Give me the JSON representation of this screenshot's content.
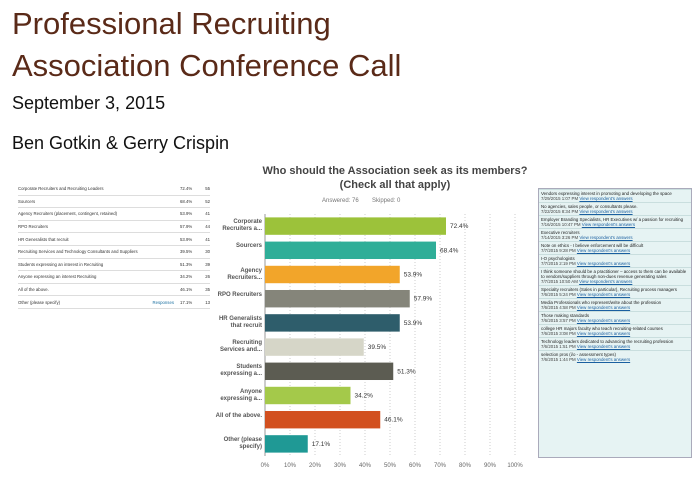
{
  "slide": {
    "title_lines": [
      "Professional Recruiting",
      "Association Conference Call"
    ],
    "date": "September 3, 2015",
    "presenters": "Ben Gotkin & Gerry Crispin"
  },
  "table": {
    "responses_link": "Responses",
    "rows": [
      [
        "Corporate Recruiters and Recruiting Leaders",
        "72.4%",
        "55"
      ],
      [
        "Sourcers",
        "68.4%",
        "52"
      ],
      [
        "Agency Recruiters (placement, contingent, retained)",
        "53.9%",
        "41"
      ],
      [
        "RPO Recruiters",
        "57.9%",
        "44"
      ],
      [
        "HR Generalists that recruit",
        "53.9%",
        "41"
      ],
      [
        "Recruiting Services and Technology Consultants and Suppliers",
        "39.5%",
        "30"
      ],
      [
        "Students expressing an interest in Recruiting",
        "51.3%",
        "39"
      ],
      [
        "Anyone expressing an interest Recruiting",
        "34.2%",
        "26"
      ],
      [
        "All of the above.",
        "46.1%",
        "35"
      ],
      [
        "Other (please specify)",
        "17.1%",
        "13"
      ]
    ]
  },
  "chart_data": {
    "type": "bar",
    "orientation": "horizontal",
    "title": "Who should the Association seek as its members?(Check all that apply)",
    "answered": "Answered: 76",
    "skipped": "Skipped: 0",
    "categories": [
      "Corporate Recruiters a...",
      "Sourcers",
      "Agency Recruiters...",
      "RPO Recruiters",
      "HR Generalists that recruit",
      "Recruiting Services and...",
      "Students expressing a...",
      "Anyone expressing a...",
      "All of the above.",
      "Other (please specify)"
    ],
    "values": [
      72.4,
      68.4,
      53.9,
      57.9,
      53.9,
      39.5,
      51.3,
      34.2,
      46.1,
      17.1
    ],
    "value_labels": [
      "72.4%",
      "68.4%",
      "53.9%",
      "57.9%",
      "53.9%",
      "39.5%",
      "51.3%",
      "34.2%",
      "46.1%",
      "17.1%"
    ],
    "colors": [
      "#9cc23a",
      "#2fae98",
      "#f2a52a",
      "#85857a",
      "#2e5d6b",
      "#d6d6c8",
      "#5c5c52",
      "#a4c94a",
      "#d2501f",
      "#1f9995"
    ],
    "xlim": [
      0,
      100
    ],
    "xticks": [
      {
        "value": 0,
        "label": "0%"
      },
      {
        "value": 10,
        "label": "10%"
      },
      {
        "value": 20,
        "label": "20%"
      },
      {
        "value": 30,
        "label": "30%"
      },
      {
        "value": 40,
        "label": "40%"
      },
      {
        "value": 50,
        "label": "50%"
      },
      {
        "value": 60,
        "label": "60%"
      },
      {
        "value": 70,
        "label": "70%"
      },
      {
        "value": 80,
        "label": "80%"
      },
      {
        "value": 90,
        "label": "90%"
      },
      {
        "value": 100,
        "label": "100%"
      }
    ],
    "grid": true
  },
  "comments": {
    "view_link": "View respondent's answers",
    "items": [
      [
        "Vendors expressing interest in promoting and developing the space",
        "7/29/2015 1:07 PM"
      ],
      [
        "No agencies, sales people, or consultants please.",
        "7/22/2015 8:34 PM"
      ],
      [
        "Employer Branding Specialists, HR Executives w/ a passion for recruiting",
        "7/16/2015 10:47 PM"
      ],
      [
        "Executive recruiters",
        "7/14/2015 3:26 PM"
      ],
      [
        "Note on ethics - I believe enforcement will be difficult",
        "7/7/2015 9:28 PM"
      ],
      [
        "I-O psychologists",
        "7/7/2015 2:19 PM"
      ],
      [
        "I think someone should be a practitioner – access to them can be available to vendors/suppliers through non-dues revenue generating sales",
        "7/7/2015 10:50 AM"
      ],
      [
        "Specialty recruiters (Sales in particular), Recruiting process managers",
        "7/6/2015 5:24 PM"
      ],
      [
        "Media Professionals who represent/write about the profession",
        "7/6/2015 4:58 PM"
      ],
      [
        "Those making standards",
        "7/6/2015 3:57 PM"
      ],
      [
        "college HR majors faculty who teach recruiting-related courses",
        "7/6/2015 3:08 PM"
      ],
      [
        "Technology leaders dedicated to advancing the recruiting profession",
        "7/6/2015 1:51 PM"
      ],
      [
        "selection pros (i/o - assessment types)",
        "7/6/2015 1:44 PM"
      ]
    ]
  }
}
